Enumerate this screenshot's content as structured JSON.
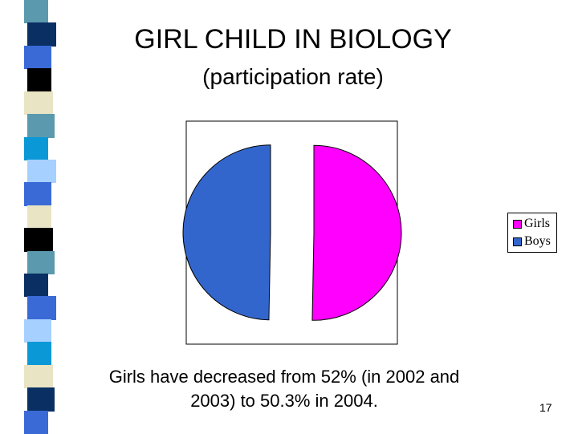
{
  "slide": {
    "title": "GIRL CHILD IN BIOLOGY",
    "subtitle": "(participation rate)",
    "caption_line1": "Girls have decreased from 52% (in 2002 and",
    "caption_line2": "2003) to 50.3% in 2004.",
    "slide_number": "17"
  },
  "deco_colors": [
    "#5b9aae",
    "#0a2f63",
    "#3a6ad6",
    "#000000",
    "#e8e4c4",
    "#5b9aae",
    "#0a99d6",
    "#a6d0ff",
    "#3a6ad6",
    "#e8e4c4",
    "#000000",
    "#5b9aae",
    "#0a2f63",
    "#3a6ad6",
    "#a6d0ff",
    "#0a99d6",
    "#e8e4c4",
    "#0a2f63",
    "#3a6ad6"
  ],
  "chart_data": {
    "type": "pie",
    "exploded": true,
    "legend_position": "right",
    "slices": [
      {
        "name": "Girls",
        "value": 50.3,
        "color": "#ff00ff"
      },
      {
        "name": "Boys",
        "value": 49.7,
        "color": "#3366cc"
      }
    ]
  }
}
